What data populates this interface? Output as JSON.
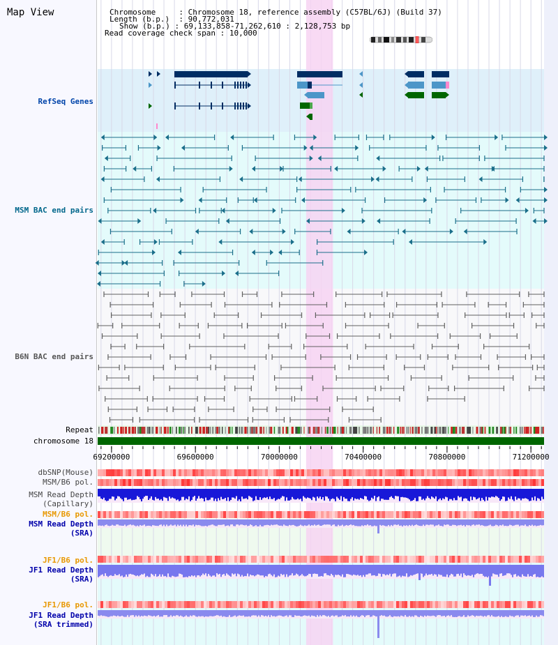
{
  "title": "Map View",
  "header": {
    "chromosome_label": "Chromosome",
    "chromosome_value": "Chromosome 18, reference assembly (C57BL/6J) (Build 37)",
    "length_label": "Length (b.p.)",
    "length_value": "90,772,031",
    "show_label": "Show (b.p.)",
    "show_value": "69,133,858-71,262,610 : 2,128,753 bp",
    "coverage_label": "Read coverage check span",
    "coverage_value": "10,000"
  },
  "tracks": {
    "refseq": "RefSeq Genes",
    "msm_bac": "MSM BAC end pairs",
    "b6n_bac": "B6N BAC end pairs",
    "repeat": "Repeat",
    "chromosome": "chromosome 18",
    "dbsnp": "dbSNP(Mouse)",
    "msm_b6_pol_1": "MSM/B6 pol.",
    "msm_depth_cap_1": "MSM Read Depth",
    "msm_depth_cap_2": "(Capillary)",
    "msm_b6_pol_2": "MSM/B6 pol.",
    "msm_depth_sra_1": "MSM Read Depth",
    "msm_depth_sra_2": "(SRA)",
    "jf1_b6_pol_1": "JF1/B6 pol.",
    "jf1_depth_sra_1": "JF1 Read Depth",
    "jf1_depth_sra_2": "(SRA)",
    "jf1_b6_pol_2": "JF1/B6 pol.",
    "jf1_depth_trim_1": "JF1 Read Depth",
    "jf1_depth_trim_2": "(SRA trimmed)"
  },
  "axis": {
    "ticks": [
      {
        "label": "69200000",
        "bp": 69200000
      },
      {
        "label": "69600000",
        "bp": 69600000
      },
      {
        "label": "70000000",
        "bp": 70000000
      },
      {
        "label": "70400000",
        "bp": 70400000
      },
      {
        "label": "70800000",
        "bp": 70800000
      },
      {
        "label": "71200000",
        "bp": 71200000
      }
    ],
    "start_bp": 69133858,
    "end_bp": 71262610
  },
  "highlight": {
    "start_bp": 70128000,
    "end_bp": 70256000
  },
  "colors": {
    "refseq_bg": "#dff0fa",
    "msm_bg": "#e4fbfb",
    "b6n_bg": "#f8f8fa",
    "highlight": "#f7d4f2",
    "gene_dark": "#002d63",
    "gene_light": "#4c96c8",
    "gene_green": "#006600",
    "bac_msm": "#1a6e8a",
    "bac_b6n": "#606060",
    "chrom_bar": "#006600",
    "snp": "#ff5050",
    "depth_blue": "#1818d8",
    "depth_sra": "#8a8aee",
    "label_msm": "#00668b",
    "label_refseq": "#0044aa",
    "label_b6n": "#555555",
    "label_pol": "#e89800",
    "label_depth": "#0000aa"
  }
}
